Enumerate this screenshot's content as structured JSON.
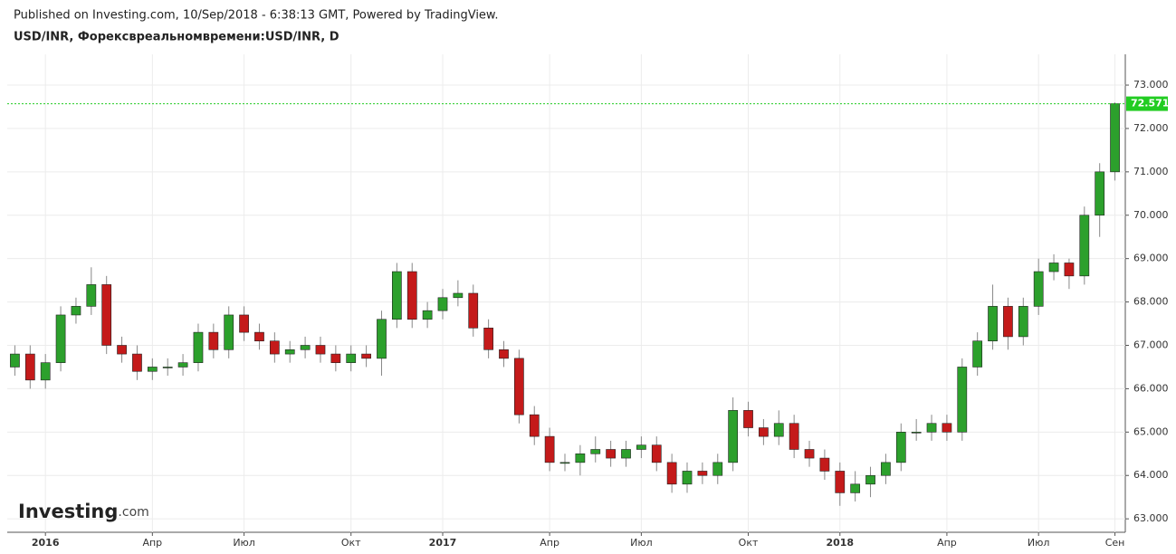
{
  "source": "Published on Investing.com, 10/Sep/2018 - 6:38:13 GMT, Powered by TradingView.",
  "watermark": [
    "Investing",
    ".com"
  ],
  "chart_data": {
    "type": "candlestick",
    "title": "USD/INR, Форексвреальномвремени:USD/INR, D",
    "categories": [
      null,
      null,
      "2016",
      null,
      null,
      null,
      null,
      null,
      null,
      "Апр",
      null,
      null,
      null,
      null,
      null,
      "Июл",
      null,
      null,
      null,
      null,
      null,
      null,
      "Окт",
      null,
      null,
      null,
      null,
      null,
      "2017",
      null,
      null,
      null,
      null,
      null,
      null,
      "Апр",
      null,
      null,
      null,
      null,
      null,
      "Июл",
      null,
      null,
      null,
      null,
      null,
      null,
      "Окт",
      null,
      null,
      null,
      null,
      null,
      "2018",
      null,
      null,
      null,
      null,
      null,
      null,
      "Апр",
      null,
      null,
      null,
      null,
      null,
      "Июл",
      null,
      null,
      null,
      null,
      "Сен"
    ],
    "open": [
      66.5,
      66.8,
      66.2,
      66.6,
      67.7,
      67.9,
      68.4,
      67.0,
      66.8,
      66.4,
      66.5,
      66.5,
      66.6,
      67.3,
      66.9,
      67.7,
      67.3,
      67.1,
      66.8,
      66.9,
      67.0,
      66.8,
      66.6,
      66.8,
      66.7,
      67.6,
      68.7,
      67.6,
      67.8,
      68.1,
      68.2,
      67.4,
      66.9,
      66.7,
      65.4,
      64.9,
      64.3,
      64.3,
      64.5,
      64.6,
      64.4,
      64.6,
      64.7,
      64.3,
      63.8,
      64.1,
      64.0,
      64.3,
      65.5,
      65.1,
      64.9,
      65.2,
      64.6,
      64.4,
      64.1,
      63.6,
      63.8,
      64.0,
      64.3,
      65.0,
      65.0,
      65.2,
      65.0,
      66.5,
      67.1,
      67.9,
      67.2,
      67.9,
      68.7,
      68.9,
      68.6,
      70.0,
      71.0
    ],
    "high": [
      67.0,
      67.0,
      66.8,
      67.9,
      68.1,
      68.8,
      68.6,
      67.2,
      67.0,
      66.7,
      66.7,
      66.8,
      67.5,
      67.5,
      67.9,
      67.9,
      67.5,
      67.3,
      67.1,
      67.2,
      67.2,
      67.0,
      67.0,
      67.0,
      67.8,
      68.9,
      68.9,
      68.0,
      68.3,
      68.5,
      68.4,
      67.6,
      67.1,
      66.9,
      65.6,
      65.1,
      64.5,
      64.7,
      64.9,
      64.8,
      64.8,
      64.9,
      64.9,
      64.5,
      64.3,
      64.3,
      64.5,
      65.8,
      65.7,
      65.3,
      65.5,
      65.4,
      64.8,
      64.6,
      64.3,
      64.1,
      64.2,
      64.5,
      65.2,
      65.3,
      65.4,
      65.4,
      66.7,
      67.3,
      68.4,
      68.1,
      68.1,
      69.0,
      69.1,
      69.0,
      70.2,
      71.2,
      72.6
    ],
    "low": [
      66.3,
      66.0,
      66.0,
      66.4,
      67.5,
      67.7,
      66.8,
      66.6,
      66.2,
      66.2,
      66.3,
      66.3,
      66.4,
      66.7,
      66.7,
      67.1,
      66.9,
      66.6,
      66.6,
      66.7,
      66.6,
      66.4,
      66.4,
      66.5,
      66.3,
      67.4,
      67.4,
      67.4,
      67.6,
      67.9,
      67.2,
      66.7,
      66.5,
      65.2,
      64.7,
      64.1,
      64.1,
      64.0,
      64.3,
      64.2,
      64.2,
      64.4,
      64.1,
      63.6,
      63.6,
      63.8,
      63.8,
      64.1,
      64.9,
      64.7,
      64.7,
      64.4,
      64.2,
      63.9,
      63.3,
      63.4,
      63.5,
      63.8,
      64.1,
      64.8,
      64.8,
      64.8,
      64.8,
      66.3,
      66.9,
      66.9,
      67.0,
      67.7,
      68.5,
      68.3,
      68.4,
      69.5,
      70.8
    ],
    "close": [
      66.8,
      66.2,
      66.6,
      67.7,
      67.9,
      68.4,
      67.0,
      66.8,
      66.4,
      66.5,
      66.5,
      66.6,
      67.3,
      66.9,
      67.7,
      67.3,
      67.1,
      66.8,
      66.9,
      67.0,
      66.8,
      66.6,
      66.8,
      66.7,
      67.6,
      68.7,
      67.6,
      67.8,
      68.1,
      68.2,
      67.4,
      66.9,
      66.7,
      65.4,
      64.9,
      64.3,
      64.3,
      64.5,
      64.6,
      64.4,
      64.6,
      64.7,
      64.3,
      63.8,
      64.1,
      64.0,
      64.3,
      65.5,
      65.1,
      64.9,
      65.2,
      64.6,
      64.4,
      64.1,
      63.6,
      63.8,
      64.0,
      64.3,
      65.0,
      65.0,
      65.2,
      65.0,
      66.5,
      67.1,
      67.9,
      67.2,
      67.9,
      68.7,
      68.9,
      68.6,
      70.0,
      71.0,
      72.571
    ],
    "up_color": "#2ca02c",
    "down_color": "#c41a1a",
    "last_price_color": "#22cc22",
    "ylim": [
      62.69,
      73.71
    ],
    "yticks": [
      {
        "value": 63,
        "label": "63.000"
      },
      {
        "value": 64,
        "label": "64.000"
      },
      {
        "value": 65,
        "label": "65.000"
      },
      {
        "value": 66,
        "label": "66.000"
      },
      {
        "value": 67,
        "label": "67.000"
      },
      {
        "value": 68,
        "label": "68.000"
      },
      {
        "value": 69,
        "label": "69.000"
      },
      {
        "value": 70,
        "label": "70.000"
      },
      {
        "value": 71,
        "label": "71.000"
      },
      {
        "value": 72,
        "label": "72.000"
      },
      {
        "value": 73,
        "label": "73.000"
      }
    ],
    "grid": true
  }
}
